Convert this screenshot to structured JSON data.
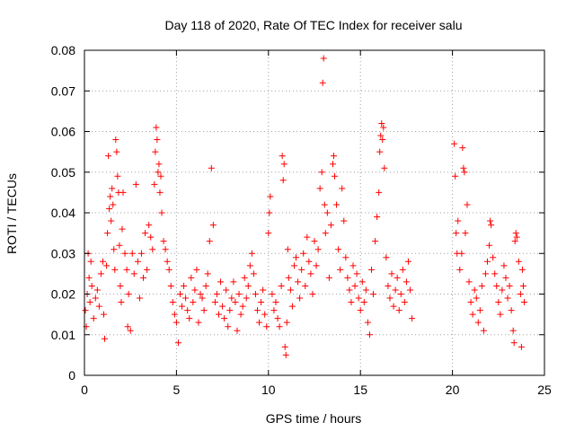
{
  "chart_data": {
    "type": "scatter",
    "title": "Day 118 of 2020, Rate Of TEC Index for receiver salu",
    "xlabel": "GPS time / hours",
    "ylabel": "ROTI / TECUs",
    "xlim": [
      0,
      25
    ],
    "ylim": [
      0,
      0.08
    ],
    "x_ticks": [
      0,
      5,
      10,
      15,
      20,
      25
    ],
    "y_ticks": [
      0,
      0.01,
      0.02,
      0.03,
      0.04,
      0.05,
      0.06,
      0.07,
      0.08
    ],
    "x_tick_labels": [
      "0",
      "5",
      "10",
      "15",
      "20",
      "25"
    ],
    "y_tick_labels": [
      "0",
      "0.01",
      "0.02",
      "0.03",
      "0.04",
      "0.05",
      "0.06",
      "0.07",
      "0.08"
    ],
    "grid": true,
    "marker": "+",
    "color": "#ff0000",
    "series": [
      {
        "name": "ROTI",
        "points": [
          [
            0.05,
            0.016
          ],
          [
            0.1,
            0.012
          ],
          [
            0.15,
            0.02
          ],
          [
            0.2,
            0.03
          ],
          [
            0.25,
            0.024
          ],
          [
            0.3,
            0.018
          ],
          [
            0.35,
            0.028
          ],
          [
            0.4,
            0.022
          ],
          [
            0.5,
            0.014
          ],
          [
            0.6,
            0.019
          ],
          [
            0.7,
            0.021
          ],
          [
            0.8,
            0.017
          ],
          [
            0.9,
            0.025
          ],
          [
            1.0,
            0.028
          ],
          [
            1.05,
            0.015
          ],
          [
            1.1,
            0.009
          ],
          [
            1.2,
            0.027
          ],
          [
            1.25,
            0.035
          ],
          [
            1.3,
            0.054
          ],
          [
            1.35,
            0.041
          ],
          [
            1.4,
            0.044
          ],
          [
            1.45,
            0.038
          ],
          [
            1.5,
            0.046
          ],
          [
            1.55,
            0.042
          ],
          [
            1.6,
            0.031
          ],
          [
            1.65,
            0.026
          ],
          [
            1.7,
            0.058
          ],
          [
            1.75,
            0.055
          ],
          [
            1.8,
            0.049
          ],
          [
            1.85,
            0.045
          ],
          [
            1.9,
            0.032
          ],
          [
            1.95,
            0.022
          ],
          [
            2.0,
            0.018
          ],
          [
            2.05,
            0.036
          ],
          [
            2.1,
            0.045
          ],
          [
            2.2,
            0.03
          ],
          [
            2.3,
            0.026
          ],
          [
            2.35,
            0.012
          ],
          [
            2.4,
            0.02
          ],
          [
            2.5,
            0.011
          ],
          [
            2.6,
            0.03
          ],
          [
            2.7,
            0.025
          ],
          [
            2.8,
            0.047
          ],
          [
            2.9,
            0.028
          ],
          [
            3.0,
            0.019
          ],
          [
            3.1,
            0.03
          ],
          [
            3.2,
            0.024
          ],
          [
            3.3,
            0.035
          ],
          [
            3.4,
            0.026
          ],
          [
            3.5,
            0.037
          ],
          [
            3.6,
            0.034
          ],
          [
            3.7,
            0.031
          ],
          [
            3.8,
            0.047
          ],
          [
            3.85,
            0.055
          ],
          [
            3.9,
            0.061
          ],
          [
            3.95,
            0.058
          ],
          [
            4.0,
            0.05
          ],
          [
            4.05,
            0.052
          ],
          [
            4.1,
            0.045
          ],
          [
            4.15,
            0.049
          ],
          [
            4.2,
            0.04
          ],
          [
            4.3,
            0.033
          ],
          [
            4.4,
            0.031
          ],
          [
            4.5,
            0.028
          ],
          [
            4.6,
            0.026
          ],
          [
            4.7,
            0.022
          ],
          [
            4.8,
            0.018
          ],
          [
            4.9,
            0.015
          ],
          [
            5.0,
            0.013
          ],
          [
            5.1,
            0.008
          ],
          [
            5.2,
            0.02
          ],
          [
            5.3,
            0.017
          ],
          [
            5.4,
            0.022
          ],
          [
            5.5,
            0.019
          ],
          [
            5.6,
            0.016
          ],
          [
            5.7,
            0.014
          ],
          [
            5.8,
            0.024
          ],
          [
            5.9,
            0.018
          ],
          [
            6.0,
            0.021
          ],
          [
            6.1,
            0.026
          ],
          [
            6.2,
            0.013
          ],
          [
            6.3,
            0.02
          ],
          [
            6.4,
            0.019
          ],
          [
            6.5,
            0.016
          ],
          [
            6.6,
            0.022
          ],
          [
            6.7,
            0.025
          ],
          [
            6.8,
            0.033
          ],
          [
            6.9,
            0.051
          ],
          [
            7.0,
            0.037
          ],
          [
            7.1,
            0.018
          ],
          [
            7.2,
            0.02
          ],
          [
            7.3,
            0.015
          ],
          [
            7.4,
            0.023
          ],
          [
            7.5,
            0.017
          ],
          [
            7.6,
            0.014
          ],
          [
            7.7,
            0.021
          ],
          [
            7.8,
            0.012
          ],
          [
            7.9,
            0.016
          ],
          [
            8.0,
            0.019
          ],
          [
            8.1,
            0.023
          ],
          [
            8.2,
            0.018
          ],
          [
            8.3,
            0.011
          ],
          [
            8.4,
            0.02
          ],
          [
            8.5,
            0.015
          ],
          [
            8.6,
            0.017
          ],
          [
            8.7,
            0.024
          ],
          [
            8.8,
            0.019
          ],
          [
            8.9,
            0.022
          ],
          [
            9.0,
            0.027
          ],
          [
            9.1,
            0.03
          ],
          [
            9.2,
            0.025
          ],
          [
            9.3,
            0.02
          ],
          [
            9.4,
            0.016
          ],
          [
            9.5,
            0.013
          ],
          [
            9.6,
            0.018
          ],
          [
            9.7,
            0.021
          ],
          [
            9.8,
            0.015
          ],
          [
            9.9,
            0.012
          ],
          [
            10.0,
            0.035
          ],
          [
            10.05,
            0.04
          ],
          [
            10.1,
            0.044
          ],
          [
            10.2,
            0.02
          ],
          [
            10.3,
            0.016
          ],
          [
            10.4,
            0.018
          ],
          [
            10.5,
            0.014
          ],
          [
            10.6,
            0.012
          ],
          [
            10.7,
            0.022
          ],
          [
            10.75,
            0.054
          ],
          [
            10.8,
            0.048
          ],
          [
            10.85,
            0.052
          ],
          [
            10.9,
            0.007
          ],
          [
            10.95,
            0.005
          ],
          [
            11.0,
            0.013
          ],
          [
            11.05,
            0.031
          ],
          [
            11.1,
            0.024
          ],
          [
            11.2,
            0.021
          ],
          [
            11.3,
            0.017
          ],
          [
            11.4,
            0.027
          ],
          [
            11.5,
            0.029
          ],
          [
            11.6,
            0.023
          ],
          [
            11.7,
            0.019
          ],
          [
            11.8,
            0.026
          ],
          [
            11.9,
            0.03
          ],
          [
            12.0,
            0.022
          ],
          [
            12.1,
            0.034
          ],
          [
            12.2,
            0.028
          ],
          [
            12.3,
            0.025
          ],
          [
            12.4,
            0.02
          ],
          [
            12.5,
            0.033
          ],
          [
            12.6,
            0.027
          ],
          [
            12.7,
            0.031
          ],
          [
            12.8,
            0.046
          ],
          [
            12.9,
            0.05
          ],
          [
            12.95,
            0.072
          ],
          [
            13.0,
            0.078
          ],
          [
            13.05,
            0.042
          ],
          [
            13.1,
            0.035
          ],
          [
            13.2,
            0.04
          ],
          [
            13.3,
            0.024
          ],
          [
            13.4,
            0.037
          ],
          [
            13.5,
            0.052
          ],
          [
            13.55,
            0.054
          ],
          [
            13.6,
            0.049
          ],
          [
            13.7,
            0.042
          ],
          [
            13.8,
            0.031
          ],
          [
            13.9,
            0.026
          ],
          [
            14.0,
            0.046
          ],
          [
            14.1,
            0.038
          ],
          [
            14.2,
            0.029
          ],
          [
            14.3,
            0.024
          ],
          [
            14.4,
            0.021
          ],
          [
            14.5,
            0.018
          ],
          [
            14.6,
            0.027
          ],
          [
            14.7,
            0.022
          ],
          [
            14.8,
            0.025
          ],
          [
            14.9,
            0.019
          ],
          [
            15.0,
            0.016
          ],
          [
            15.1,
            0.023
          ],
          [
            15.2,
            0.018
          ],
          [
            15.3,
            0.021
          ],
          [
            15.4,
            0.013
          ],
          [
            15.5,
            0.01
          ],
          [
            15.6,
            0.026
          ],
          [
            15.7,
            0.02
          ],
          [
            15.8,
            0.033
          ],
          [
            15.9,
            0.039
          ],
          [
            16.0,
            0.045
          ],
          [
            16.05,
            0.055
          ],
          [
            16.1,
            0.059
          ],
          [
            16.15,
            0.062
          ],
          [
            16.2,
            0.058
          ],
          [
            16.25,
            0.061
          ],
          [
            16.3,
            0.051
          ],
          [
            16.4,
            0.029
          ],
          [
            16.5,
            0.022
          ],
          [
            16.6,
            0.019
          ],
          [
            16.7,
            0.025
          ],
          [
            16.8,
            0.017
          ],
          [
            16.9,
            0.021
          ],
          [
            17.0,
            0.024
          ],
          [
            17.1,
            0.016
          ],
          [
            17.2,
            0.02
          ],
          [
            17.3,
            0.026
          ],
          [
            17.4,
            0.018
          ],
          [
            17.5,
            0.023
          ],
          [
            17.6,
            0.028
          ],
          [
            17.7,
            0.021
          ],
          [
            17.8,
            0.014
          ],
          [
            20.1,
            0.057
          ],
          [
            20.15,
            0.049
          ],
          [
            20.2,
            0.035
          ],
          [
            20.25,
            0.03
          ],
          [
            20.3,
            0.038
          ],
          [
            20.4,
            0.026
          ],
          [
            20.5,
            0.03
          ],
          [
            20.55,
            0.056
          ],
          [
            20.6,
            0.051
          ],
          [
            20.65,
            0.05
          ],
          [
            20.7,
            0.035
          ],
          [
            20.8,
            0.042
          ],
          [
            20.9,
            0.023
          ],
          [
            21.0,
            0.018
          ],
          [
            21.1,
            0.015
          ],
          [
            21.2,
            0.021
          ],
          [
            21.3,
            0.019
          ],
          [
            21.4,
            0.013
          ],
          [
            21.5,
            0.016
          ],
          [
            21.6,
            0.022
          ],
          [
            21.7,
            0.011
          ],
          [
            21.8,
            0.025
          ],
          [
            21.9,
            0.028
          ],
          [
            22.0,
            0.032
          ],
          [
            22.05,
            0.038
          ],
          [
            22.1,
            0.037
          ],
          [
            22.2,
            0.029
          ],
          [
            22.3,
            0.025
          ],
          [
            22.4,
            0.022
          ],
          [
            22.5,
            0.018
          ],
          [
            22.6,
            0.015
          ],
          [
            22.7,
            0.021
          ],
          [
            22.8,
            0.027
          ],
          [
            22.9,
            0.024
          ],
          [
            23.0,
            0.019
          ],
          [
            23.1,
            0.022
          ],
          [
            23.2,
            0.016
          ],
          [
            23.3,
            0.011
          ],
          [
            23.35,
            0.008
          ],
          [
            23.4,
            0.033
          ],
          [
            23.45,
            0.035
          ],
          [
            23.5,
            0.034
          ],
          [
            23.6,
            0.028
          ],
          [
            23.7,
            0.02
          ],
          [
            23.75,
            0.007
          ],
          [
            23.8,
            0.026
          ],
          [
            23.85,
            0.022
          ],
          [
            23.9,
            0.018
          ]
        ]
      }
    ]
  }
}
